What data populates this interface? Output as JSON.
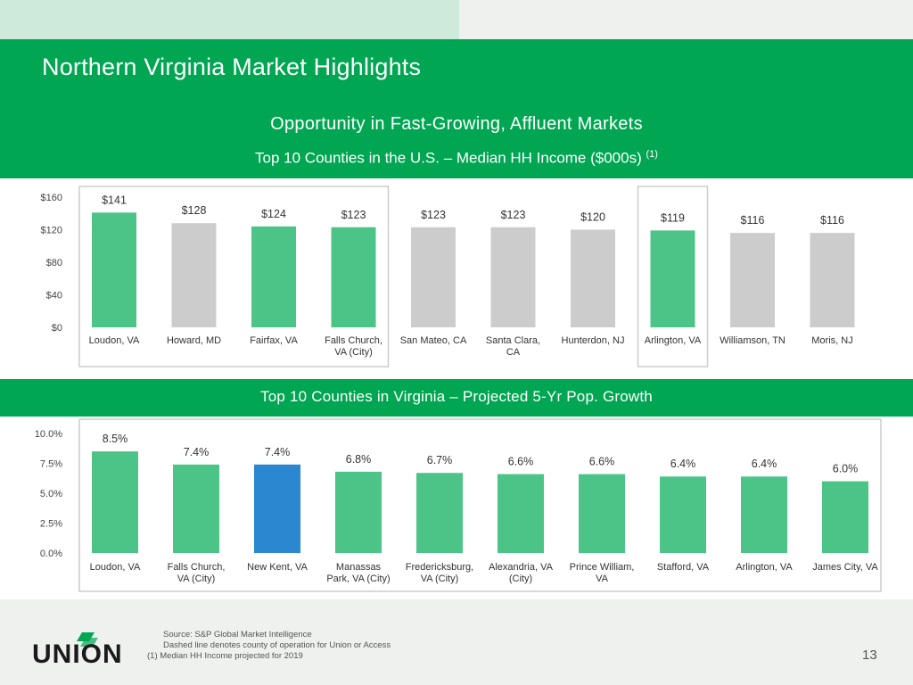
{
  "header": {
    "title": "Northern Virginia Market Highlights",
    "subtitle": "Opportunity in Fast-Growing, Affluent Markets",
    "chart1_title": "Top 10 Counties in the U.S. – Median HH Income ($000s)",
    "chart1_title_note": "(1)",
    "chart2_title": "Top 10 Counties in Virginia – Projected 5-Yr Pop. Growth"
  },
  "chart_data": [
    {
      "type": "bar",
      "title": "Top 10 Counties in the U.S. – Median HH Income ($000s)",
      "categories": [
        [
          "Loudon, VA"
        ],
        [
          "Howard, MD"
        ],
        [
          "Fairfax, VA"
        ],
        [
          "Falls Church,",
          "VA (City)"
        ],
        [
          "San Mateo, CA"
        ],
        [
          "Santa Clara,",
          "CA"
        ],
        [
          "Hunterdon, NJ"
        ],
        [
          "Arlington, VA"
        ],
        [
          "Williamson, TN"
        ],
        [
          "Moris, NJ"
        ]
      ],
      "values": [
        141,
        128,
        124,
        123,
        123,
        123,
        120,
        119,
        116,
        116
      ],
      "value_labels": [
        "$141",
        "$128",
        "$124",
        "$123",
        "$123",
        "$123",
        "$120",
        "$119",
        "$116",
        "$116"
      ],
      "bar_colors": [
        "#4cc487",
        "#cccccc",
        "#4cc487",
        "#4cc487",
        "#cccccc",
        "#cccccc",
        "#cccccc",
        "#4cc487",
        "#cccccc",
        "#cccccc"
      ],
      "highlight_groups": [
        [
          0,
          3
        ],
        [
          7,
          7
        ]
      ],
      "yticks": [
        "$0",
        "$40",
        "$80",
        "$120",
        "$160"
      ],
      "ylim": [
        0,
        160
      ],
      "xlabel": "",
      "ylabel": ""
    },
    {
      "type": "bar",
      "title": "Top 10 Counties in Virginia – Projected 5-Yr Pop. Growth",
      "categories": [
        [
          "Loudon, VA"
        ],
        [
          "Falls Church,",
          "VA (City)"
        ],
        [
          "New Kent, VA"
        ],
        [
          "Manassas",
          "Park, VA (City)"
        ],
        [
          "Fredericksburg,",
          "VA (City)"
        ],
        [
          "Alexandria, VA",
          "(City)"
        ],
        [
          "Prince William,",
          "VA"
        ],
        [
          "Stafford, VA"
        ],
        [
          "Arlington, VA"
        ],
        [
          "James City, VA"
        ]
      ],
      "values": [
        8.5,
        7.4,
        7.4,
        6.8,
        6.7,
        6.6,
        6.6,
        6.4,
        6.4,
        6.0
      ],
      "value_labels": [
        "8.5%",
        "7.4%",
        "7.4%",
        "6.8%",
        "6.7%",
        "6.6%",
        "6.6%",
        "6.4%",
        "6.4%",
        "6.0%"
      ],
      "bar_colors": [
        "#4cc487",
        "#4cc487",
        "#2a87d0",
        "#4cc487",
        "#4cc487",
        "#4cc487",
        "#4cc487",
        "#4cc487",
        "#4cc487",
        "#4cc487"
      ],
      "highlight_groups": [
        [
          0,
          9
        ]
      ],
      "yticks": [
        "0.0%",
        "2.5%",
        "5.0%",
        "7.5%",
        "10.0%"
      ],
      "ylim": [
        0,
        10
      ],
      "xlabel": "",
      "ylabel": ""
    }
  ],
  "footer": {
    "source": "Source: S&P Global Market Intelligence",
    "note_dashed": "Dashed line denotes  county of operation for Union or Access",
    "note_1": "(1) Median HH Income projected for 2019",
    "logo_text": "UNION",
    "page_number": "13"
  },
  "colors": {
    "brand_green": "#00a651",
    "bar_green": "#4cc487",
    "bar_gray": "#cccccc",
    "bar_blue": "#2a87d0"
  }
}
